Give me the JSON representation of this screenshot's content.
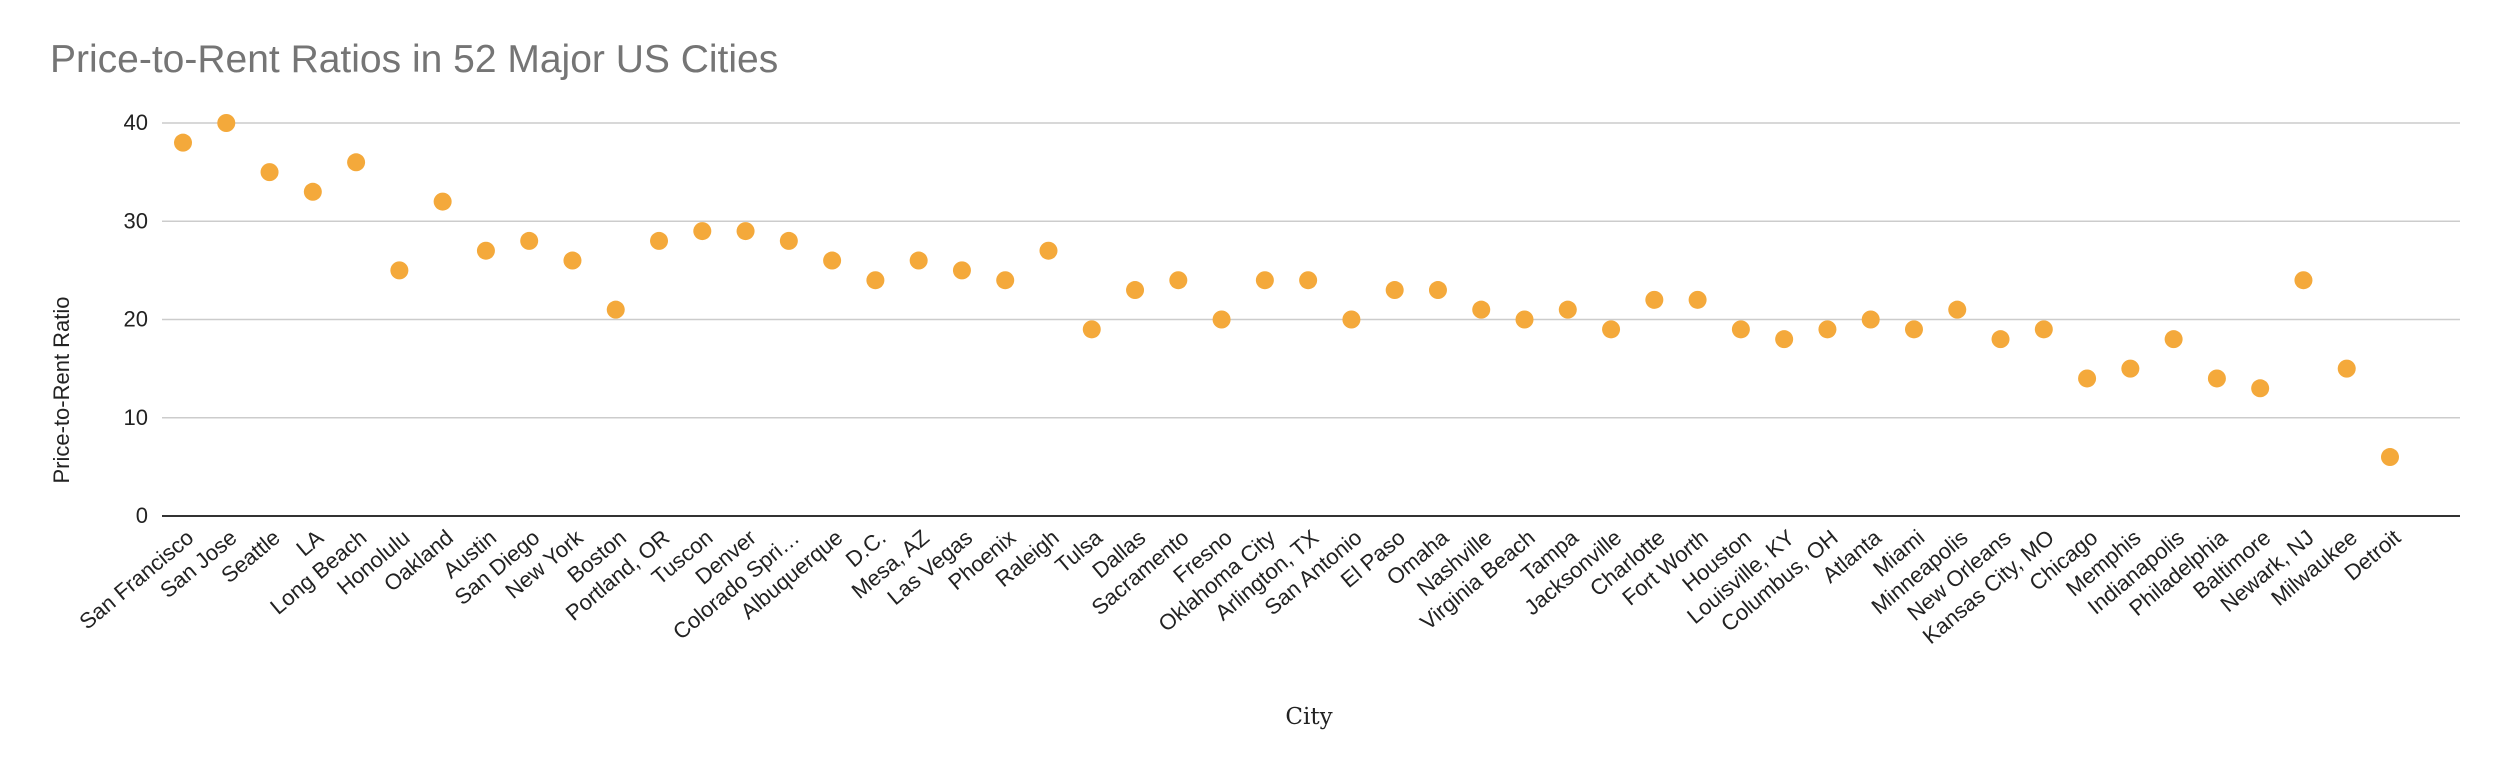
{
  "chart_data": {
    "type": "scatter",
    "title": "Price-to-Rent Ratios in 52 Major US Cities",
    "xlabel": "City",
    "ylabel": "Price-to-Rent Ratio",
    "ylim": [
      0,
      40
    ],
    "yticks": [
      "0",
      "10",
      "20",
      "30",
      "40"
    ],
    "grid": true,
    "legend": "none",
    "point_color": "#f4a93b",
    "categories": [
      "San Francisco",
      "San Jose",
      "Seattle",
      "LA",
      "Long Beach",
      "Honolulu",
      "Oakland",
      "Austin",
      "San Diego",
      "New York",
      "Boston",
      "Portland, OR",
      "Tuscon",
      "Denver",
      "Colorado Spri…",
      "Albuquerque",
      "D.C.",
      "Mesa, AZ",
      "Las Vegas",
      "Phoenix",
      "Raleigh",
      "Tulsa",
      "Dallas",
      "Sacramento",
      "Fresno",
      "Oklahoma City",
      "Arlington, TX",
      "San Antonio",
      "El Paso",
      "Omaha",
      "Nashville",
      "Virginia Beach",
      "Tampa",
      "Jacksonville",
      "Charlotte",
      "Fort Worth",
      "Houston",
      "Louisville, KY",
      "Columbus, OH",
      "Atlanta",
      "Miami",
      "Minneapolis",
      "New Orleans",
      "Kansas City, MO",
      "Chicago",
      "Memphis",
      "Indianapolis",
      "Philadelphia",
      "Baltimore",
      "Newark, NJ",
      "Milwaukee",
      "Detroit"
    ],
    "values": [
      38,
      40,
      35,
      33,
      36,
      25,
      32,
      27,
      28,
      26,
      21,
      28,
      29,
      29,
      28,
      26,
      24,
      26,
      25,
      24,
      27,
      19,
      23,
      24,
      20,
      24,
      24,
      20,
      23,
      23,
      21,
      20,
      21,
      19,
      22,
      22,
      19,
      18,
      19,
      20,
      19,
      21,
      18,
      19,
      14,
      15,
      18,
      14,
      13,
      24,
      15,
      6
    ]
  }
}
